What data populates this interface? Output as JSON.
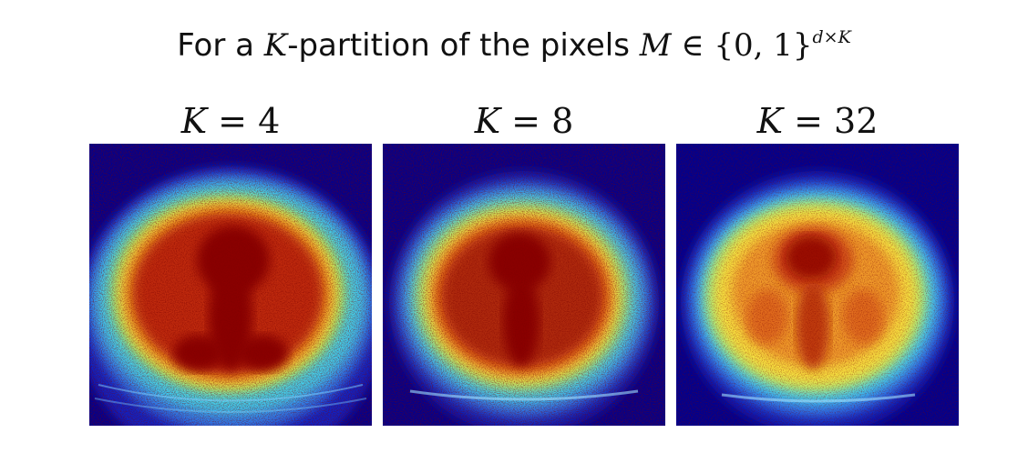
{
  "title": {
    "prefix": "For a ",
    "k_var": "K",
    "middle": "-partition of the pixels ",
    "m_var": "M",
    "set": " ∈ {0, 1}",
    "superscript": "d×K"
  },
  "panels": [
    {
      "var": "K",
      "rel": " = ",
      "value": "4"
    },
    {
      "var": "K",
      "rel": " = ",
      "value": "8"
    },
    {
      "var": "K",
      "rel": " = ",
      "value": "32"
    }
  ],
  "colormap": "jet",
  "colors": {
    "background_dark_blue": "#00008f",
    "cyan": "#40d0f0",
    "yellow": "#f8e040",
    "orange": "#f07020",
    "dark_red": "#8a0000"
  }
}
